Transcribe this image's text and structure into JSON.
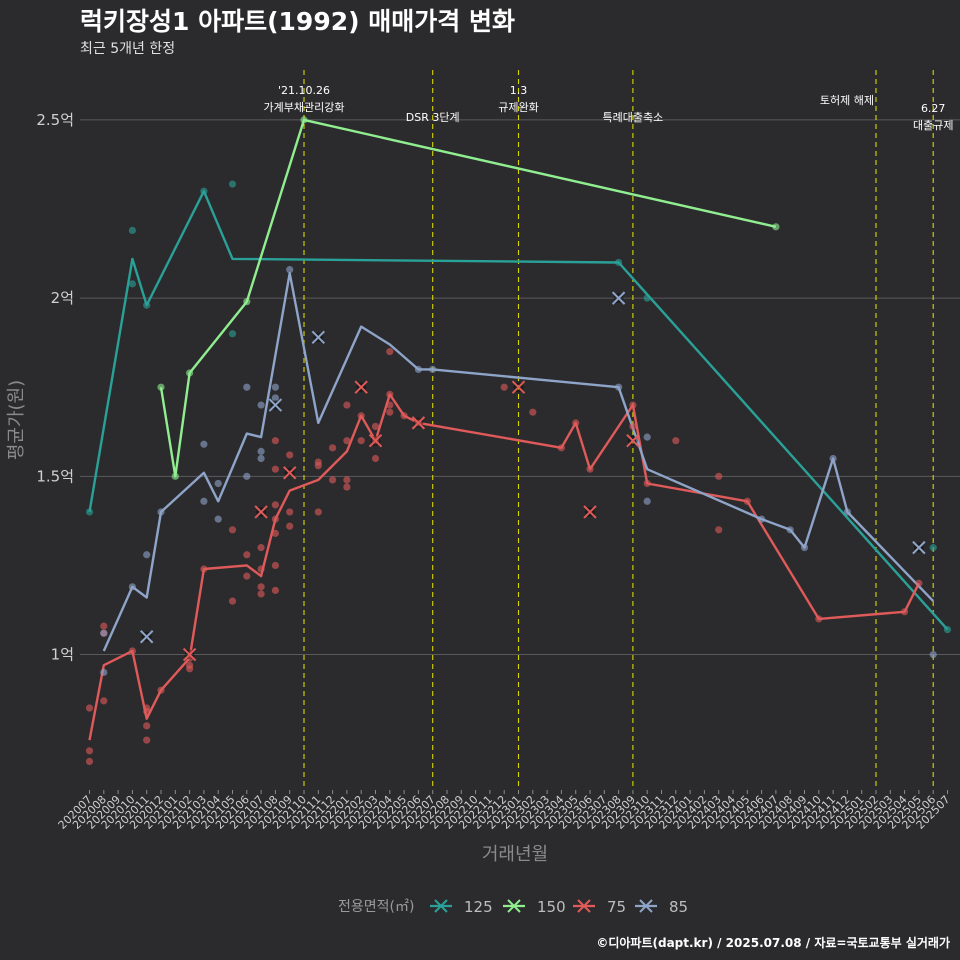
{
  "header": {
    "title": "럭키장성1 아파트(1992) 매매가격 변화",
    "subtitle": "최근 5개년 한정",
    "caption": "©디아파트(dapt.kr) / 2025.07.08 / 자료=국토교통부 실거래가"
  },
  "chart_data": {
    "type": "line",
    "title": "럭키장성1 아파트(1992) 매매가격 변화",
    "subtitle": "최근 5개년 한정",
    "xlabel": "거래년월",
    "ylabel": "평균가(원)",
    "x_start": "202007",
    "x_end": "202507",
    "ylim": [
      0.62,
      2.64
    ],
    "y_ticks": [
      {
        "value": 1.0,
        "label": "1억"
      },
      {
        "value": 1.5,
        "label": "1.5억"
      },
      {
        "value": 2.0,
        "label": "2억"
      },
      {
        "value": 2.5,
        "label": "2.5억"
      }
    ],
    "x_tick_labels": [
      "202007",
      "202008",
      "202009",
      "202010",
      "202011",
      "202012",
      "202101",
      "202102",
      "202103",
      "202104",
      "202105",
      "202106",
      "202107",
      "202108",
      "202109",
      "202110",
      "202111",
      "202112",
      "202201",
      "202202",
      "202203",
      "202204",
      "202205",
      "202206",
      "202207",
      "202208",
      "202209",
      "202210",
      "202211",
      "202212",
      "202301",
      "202302",
      "202303",
      "202304",
      "202305",
      "202306",
      "202307",
      "202308",
      "202309",
      "202310",
      "202311",
      "202312",
      "202401",
      "202402",
      "202403",
      "202404",
      "202405",
      "202406",
      "202407",
      "202408",
      "202409",
      "202410",
      "202411",
      "202412",
      "202501",
      "202502",
      "202503",
      "202504",
      "202505",
      "202506",
      "202507"
    ],
    "grid": true,
    "legend_title": "전용면적(㎡)",
    "legend_position": "bottom",
    "series": [
      {
        "name": "125",
        "color": "#2aa198",
        "line": [
          [
            202007,
            1.4
          ],
          [
            202010,
            2.11
          ],
          [
            202011,
            1.98
          ],
          [
            202103,
            2.3
          ],
          [
            202105,
            2.11
          ],
          [
            202308,
            2.1
          ],
          [
            202507,
            1.07
          ]
        ],
        "points": [
          [
            202007,
            1.4
          ],
          [
            202010,
            2.19
          ],
          [
            202010,
            2.04
          ],
          [
            202011,
            1.98
          ],
          [
            202103,
            2.3
          ],
          [
            202105,
            2.32
          ],
          [
            202105,
            1.9
          ],
          [
            202308,
            2.1
          ],
          [
            202310,
            2.0
          ],
          [
            202506,
            1.3
          ],
          [
            202507,
            1.07
          ]
        ],
        "cancelled": []
      },
      {
        "name": "150",
        "color": "#90ee90",
        "line": [
          [
            202012,
            1.75
          ],
          [
            202101,
            1.5
          ],
          [
            202102,
            1.79
          ],
          [
            202106,
            1.99
          ],
          [
            202110,
            2.5
          ],
          [
            202407,
            2.2
          ]
        ],
        "points": [
          [
            202012,
            1.75
          ],
          [
            202101,
            1.5
          ],
          [
            202102,
            1.79
          ],
          [
            202106,
            1.99
          ],
          [
            202110,
            2.5
          ],
          [
            202407,
            2.2
          ]
        ],
        "cancelled": []
      },
      {
        "name": "75",
        "color": "#e05a5a",
        "line": [
          [
            202007,
            0.76
          ],
          [
            202008,
            0.97
          ],
          [
            202010,
            1.01
          ],
          [
            202011,
            0.82
          ],
          [
            202012,
            0.9
          ],
          [
            202102,
            0.99
          ],
          [
            202103,
            1.24
          ],
          [
            202106,
            1.25
          ],
          [
            202107,
            1.22
          ],
          [
            202108,
            1.38
          ],
          [
            202109,
            1.46
          ],
          [
            202111,
            1.49
          ],
          [
            202201,
            1.57
          ],
          [
            202202,
            1.67
          ],
          [
            202203,
            1.6
          ],
          [
            202204,
            1.73
          ],
          [
            202205,
            1.67
          ],
          [
            202206,
            1.65
          ],
          [
            202304,
            1.58
          ],
          [
            202305,
            1.65
          ],
          [
            202306,
            1.52
          ],
          [
            202309,
            1.7
          ],
          [
            202310,
            1.48
          ],
          [
            202405,
            1.43
          ],
          [
            202410,
            1.1
          ],
          [
            202504,
            1.12
          ],
          [
            202505,
            1.2
          ]
        ],
        "points": [
          [
            202007,
            0.85
          ],
          [
            202007,
            0.73
          ],
          [
            202007,
            0.7
          ],
          [
            202008,
            1.08
          ],
          [
            202008,
            1.06
          ],
          [
            202008,
            0.87
          ],
          [
            202010,
            1.01
          ],
          [
            202011,
            0.85
          ],
          [
            202011,
            0.84
          ],
          [
            202011,
            0.8
          ],
          [
            202011,
            0.76
          ],
          [
            202012,
            0.9
          ],
          [
            202102,
            0.99
          ],
          [
            202102,
            0.97
          ],
          [
            202102,
            0.96
          ],
          [
            202103,
            1.24
          ],
          [
            202105,
            1.15
          ],
          [
            202105,
            1.35
          ],
          [
            202106,
            1.22
          ],
          [
            202106,
            1.28
          ],
          [
            202107,
            1.3
          ],
          [
            202107,
            1.19
          ],
          [
            202107,
            1.17
          ],
          [
            202107,
            1.24
          ],
          [
            202108,
            1.18
          ],
          [
            202108,
            1.25
          ],
          [
            202108,
            1.34
          ],
          [
            202108,
            1.38
          ],
          [
            202108,
            1.42
          ],
          [
            202108,
            1.52
          ],
          [
            202108,
            1.6
          ],
          [
            202109,
            1.36
          ],
          [
            202109,
            1.4
          ],
          [
            202109,
            1.56
          ],
          [
            202111,
            1.4
          ],
          [
            202111,
            1.53
          ],
          [
            202111,
            1.54
          ],
          [
            202112,
            1.49
          ],
          [
            202112,
            1.58
          ],
          [
            202201,
            1.47
          ],
          [
            202201,
            1.49
          ],
          [
            202201,
            1.6
          ],
          [
            202201,
            1.7
          ],
          [
            202202,
            1.6
          ],
          [
            202202,
            1.67
          ],
          [
            202203,
            1.55
          ],
          [
            202203,
            1.6
          ],
          [
            202203,
            1.64
          ],
          [
            202204,
            1.68
          ],
          [
            202204,
            1.7
          ],
          [
            202204,
            1.73
          ],
          [
            202204,
            1.85
          ],
          [
            202205,
            1.67
          ],
          [
            202206,
            1.65
          ],
          [
            202212,
            1.75
          ],
          [
            202302,
            1.68
          ],
          [
            202304,
            1.58
          ],
          [
            202305,
            1.65
          ],
          [
            202306,
            1.52
          ],
          [
            202309,
            1.7
          ],
          [
            202309,
            1.64
          ],
          [
            202310,
            1.48
          ],
          [
            202312,
            1.6
          ],
          [
            202403,
            1.5
          ],
          [
            202403,
            1.35
          ],
          [
            202405,
            1.43
          ],
          [
            202410,
            1.1
          ],
          [
            202504,
            1.12
          ],
          [
            202505,
            1.2
          ]
        ],
        "cancelled": [
          [
            202102,
            1.0
          ],
          [
            202107,
            1.4
          ],
          [
            202109,
            1.51
          ],
          [
            202202,
            1.75
          ],
          [
            202203,
            1.6
          ],
          [
            202206,
            1.65
          ],
          [
            202301,
            1.75
          ],
          [
            202306,
            1.4
          ],
          [
            202309,
            1.6
          ]
        ]
      },
      {
        "name": "85",
        "color": "#8ea4c8",
        "line": [
          [
            202008,
            1.01
          ],
          [
            202010,
            1.19
          ],
          [
            202011,
            1.16
          ],
          [
            202012,
            1.4
          ],
          [
            202103,
            1.51
          ],
          [
            202104,
            1.43
          ],
          [
            202106,
            1.62
          ],
          [
            202107,
            1.61
          ],
          [
            202109,
            2.07
          ],
          [
            202111,
            1.65
          ],
          [
            202202,
            1.92
          ],
          [
            202204,
            1.87
          ],
          [
            202206,
            1.8
          ],
          [
            202207,
            1.8
          ],
          [
            202308,
            1.75
          ],
          [
            202310,
            1.52
          ],
          [
            202406,
            1.38
          ],
          [
            202408,
            1.35
          ],
          [
            202409,
            1.3
          ],
          [
            202411,
            1.55
          ],
          [
            202412,
            1.4
          ],
          [
            202506,
            1.15
          ]
        ],
        "points": [
          [
            202008,
            1.06
          ],
          [
            202008,
            0.95
          ],
          [
            202010,
            1.19
          ],
          [
            202011,
            1.28
          ],
          [
            202012,
            1.4
          ],
          [
            202103,
            1.43
          ],
          [
            202103,
            1.59
          ],
          [
            202104,
            1.38
          ],
          [
            202104,
            1.48
          ],
          [
            202106,
            1.5
          ],
          [
            202106,
            1.75
          ],
          [
            202107,
            1.55
          ],
          [
            202107,
            1.57
          ],
          [
            202107,
            1.7
          ],
          [
            202108,
            1.75
          ],
          [
            202108,
            1.72
          ],
          [
            202109,
            2.08
          ],
          [
            202206,
            1.8
          ],
          [
            202207,
            1.8
          ],
          [
            202308,
            1.75
          ],
          [
            202310,
            1.61
          ],
          [
            202310,
            1.43
          ],
          [
            202406,
            1.38
          ],
          [
            202408,
            1.35
          ],
          [
            202409,
            1.3
          ],
          [
            202411,
            1.55
          ],
          [
            202412,
            1.4
          ],
          [
            202506,
            1.0
          ]
        ],
        "cancelled": [
          [
            202011,
            1.05
          ],
          [
            202108,
            1.7
          ],
          [
            202111,
            1.89
          ],
          [
            202308,
            2.0
          ],
          [
            202505,
            1.3
          ]
        ]
      }
    ],
    "annotations": [
      {
        "x": "202110",
        "lines": [
          "'21.10.26",
          "가계부채관리강화"
        ],
        "align": "top"
      },
      {
        "x": "202207",
        "lines": [
          "DSR 3단계"
        ],
        "align": "low"
      },
      {
        "x": "202301",
        "lines": [
          "1.3",
          "규제완화"
        ],
        "align": "top"
      },
      {
        "x": "202309",
        "lines": [
          "특례대출축소"
        ],
        "align": "low"
      },
      {
        "x": "202502",
        "lines": [
          "토허제 해제"
        ],
        "align": "high"
      },
      {
        "x": "202506",
        "lines": [
          "6.27",
          "대출규제"
        ],
        "align": "mid"
      }
    ]
  }
}
